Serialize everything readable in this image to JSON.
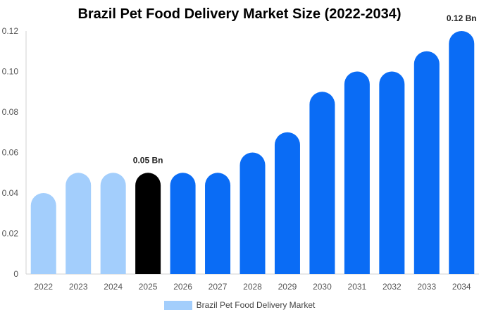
{
  "chart_data": {
    "type": "bar",
    "title": "Brazil Pet Food Delivery Market Size (2022-2034)",
    "categories": [
      "2022",
      "2023",
      "2024",
      "2025",
      "2026",
      "2027",
      "2028",
      "2029",
      "2030",
      "2031",
      "2032",
      "2033",
      "2034"
    ],
    "series": [
      {
        "name": "Brazil Pet Food Delivery Market",
        "values": [
          0.04,
          0.05,
          0.05,
          0.05,
          0.05,
          0.05,
          0.06,
          0.07,
          0.09,
          0.1,
          0.1,
          0.11,
          0.12
        ]
      }
    ],
    "ylim": [
      0,
      0.12
    ],
    "yticks": [
      "0",
      "0.02",
      "0.04",
      "0.06",
      "0.08",
      "0.10",
      "0.12"
    ],
    "ytick_values": [
      0,
      0.02,
      0.04,
      0.06,
      0.08,
      0.1,
      0.12
    ],
    "data_labels": [
      {
        "category": "2025",
        "text": "0.05 Bn"
      },
      {
        "category": "2034",
        "text": "0.12 Bn"
      }
    ],
    "bar_colors": {
      "historical": "#a3cefc",
      "current": "#000000",
      "forecast": "#0a6cf5"
    },
    "bar_groups": [
      "historical",
      "historical",
      "historical",
      "current",
      "forecast",
      "forecast",
      "forecast",
      "forecast",
      "forecast",
      "forecast",
      "forecast",
      "forecast",
      "forecast"
    ],
    "grid": false,
    "legend_position": "bottom-center",
    "legend_color": "#a3cefc"
  }
}
